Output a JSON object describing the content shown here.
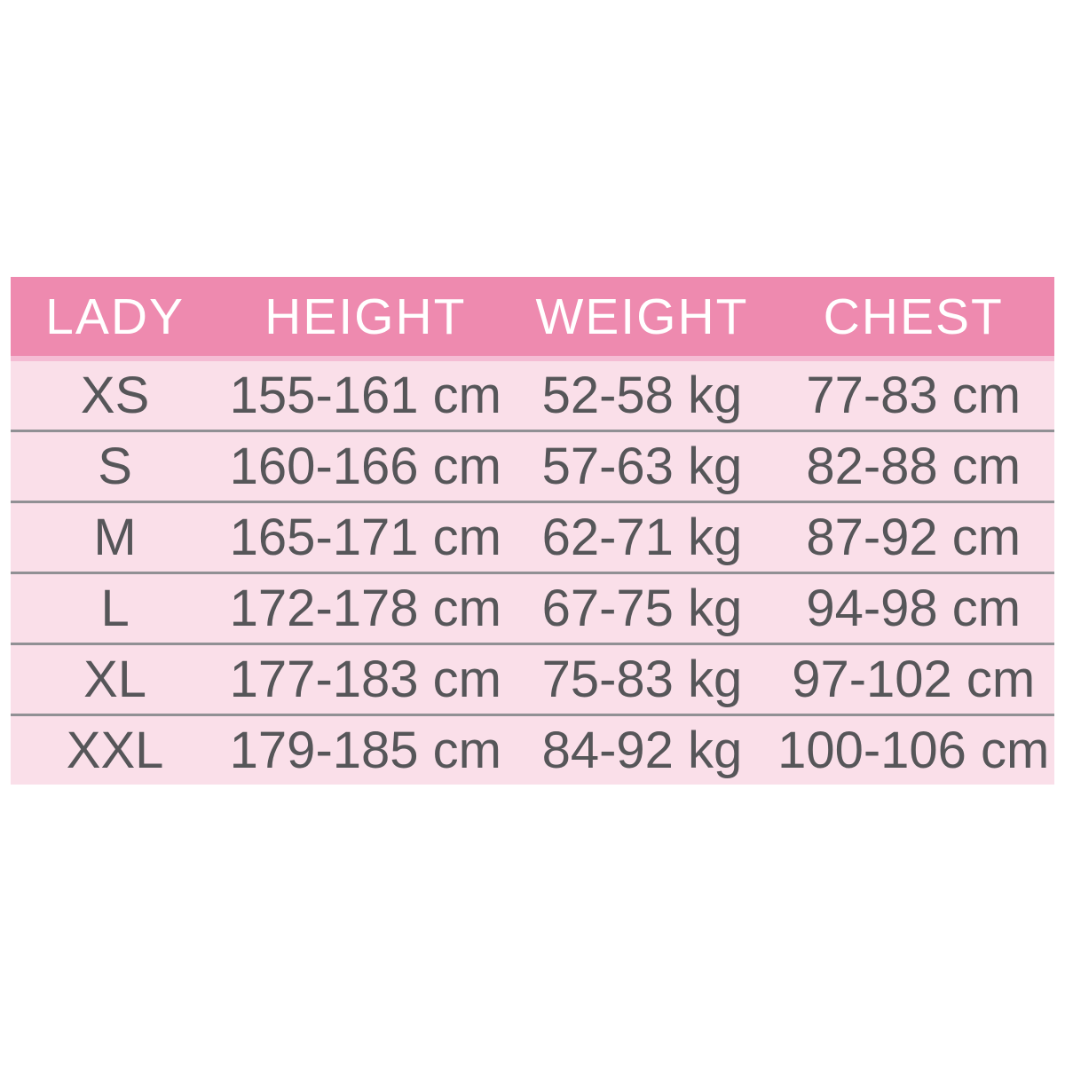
{
  "size_chart": {
    "header": {
      "col1": "LADY",
      "col2": "HEIGHT",
      "col3": "WEIGHT",
      "col4": "CHEST"
    },
    "rows": [
      {
        "size": "XS",
        "height": "155-161 cm",
        "weight": "52-58 kg",
        "chest": "77-83 cm"
      },
      {
        "size": "S",
        "height": "160-166 cm",
        "weight": "57-63 kg",
        "chest": "82-88 cm"
      },
      {
        "size": "M",
        "height": "165-171 cm",
        "weight": "62-71 kg",
        "chest": "87-92 cm"
      },
      {
        "size": "L",
        "height": "172-178 cm",
        "weight": "67-75 kg",
        "chest": "94-98 cm"
      },
      {
        "size": "XL",
        "height": "177-183 cm",
        "weight": "75-83 kg",
        "chest": "97-102 cm"
      },
      {
        "size": "XXL",
        "height": "179-185 cm",
        "weight": "84-92 kg",
        "chest": "100-106 cm"
      }
    ]
  },
  "colors": {
    "header_bg": "#ee8aaf",
    "header_text": "#ffffff",
    "row_bg": "#fadfe9",
    "row_text": "#565659",
    "separator": "#909094",
    "page_bg": "#ffffff"
  },
  "chart_data": {
    "type": "table",
    "title": "",
    "columns": [
      "LADY",
      "HEIGHT",
      "WEIGHT",
      "CHEST"
    ],
    "rows": [
      [
        "XS",
        "155-161 cm",
        "52-58 kg",
        "77-83 cm"
      ],
      [
        "S",
        "160-166 cm",
        "57-63 kg",
        "82-88 cm"
      ],
      [
        "M",
        "165-171 cm",
        "62-71 kg",
        "87-92 cm"
      ],
      [
        "L",
        "172-178 cm",
        "67-75 kg",
        "94-98 cm"
      ],
      [
        "XL",
        "177-183 cm",
        "75-83 kg",
        "97-102 cm"
      ],
      [
        "XXL",
        "179-185 cm",
        "84-92 kg",
        "100-106 cm"
      ]
    ]
  }
}
